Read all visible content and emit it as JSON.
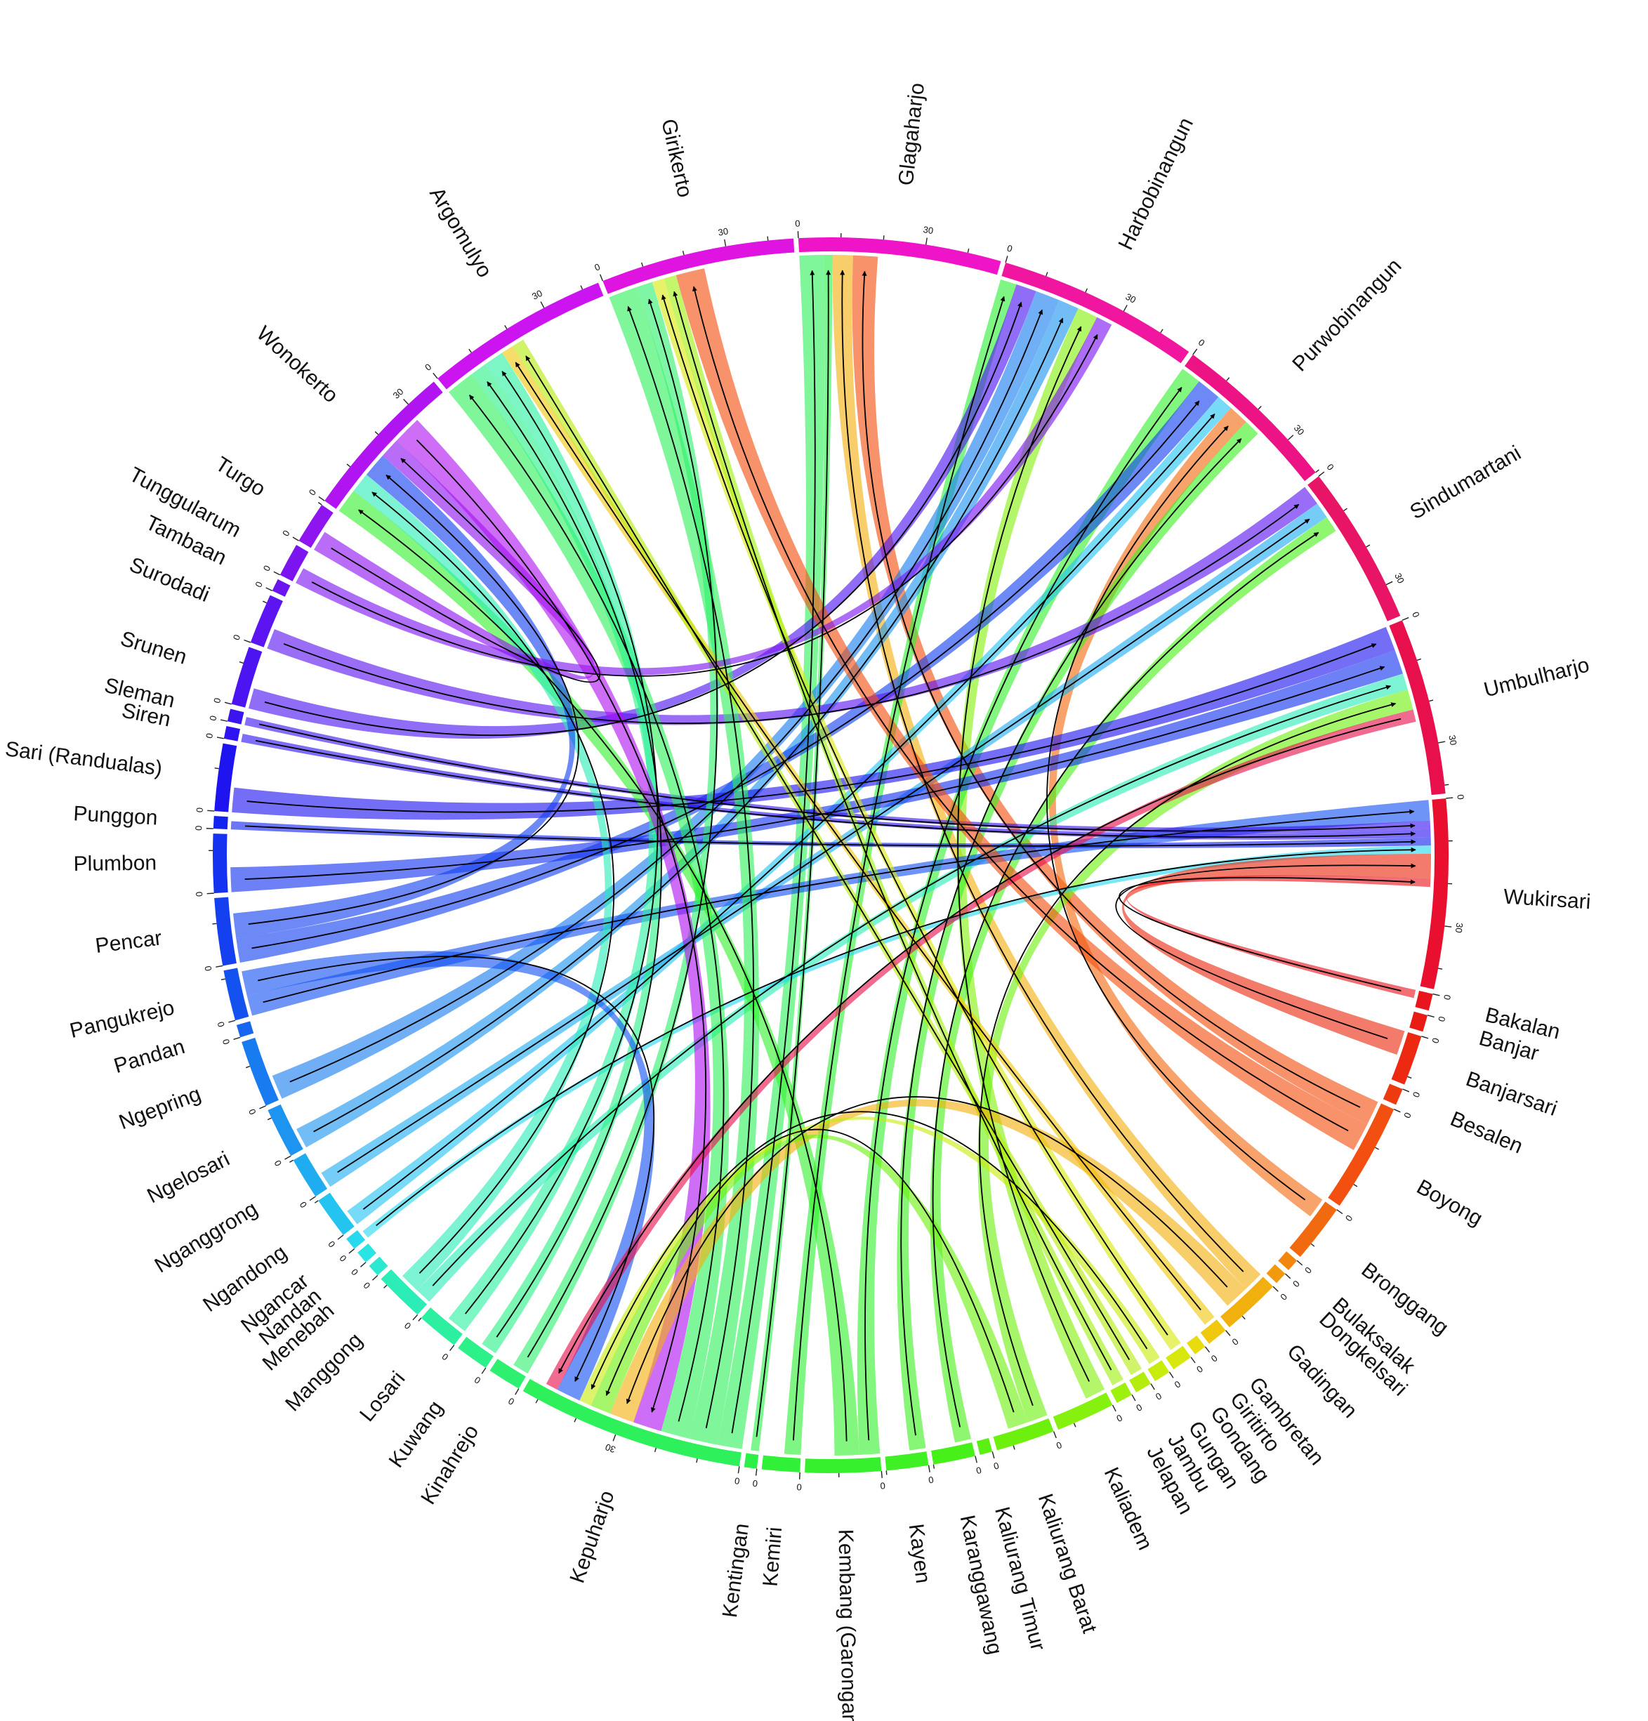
{
  "chart_data": {
    "type": "chord",
    "title": "",
    "tick_step": 10,
    "tick_label_step": 30,
    "tick_labels": [
      "0",
      "30"
    ],
    "segments": [
      {
        "name": "Glagaharjo",
        "value": 48,
        "color": "#f014c8"
      },
      {
        "name": "Harbobinangun",
        "value": 48,
        "color": "#f0169f"
      },
      {
        "name": "Purwobinangun",
        "value": 40,
        "color": "#ec1384"
      },
      {
        "name": "Sindumartani",
        "value": 38,
        "color": "#e81465"
      },
      {
        "name": "Umbulharjo",
        "value": 42,
        "color": "#e8104c"
      },
      {
        "name": "Wukirsari",
        "value": 45,
        "color": "#e8102e"
      },
      {
        "name": "Bakalan",
        "value": 4,
        "color": "#e8151c"
      },
      {
        "name": "Banjar",
        "value": 4,
        "color": "#e81c14"
      },
      {
        "name": "Banjarsari",
        "value": 12,
        "color": "#ec2a12"
      },
      {
        "name": "Besalen",
        "value": 4,
        "color": "#ee3a10"
      },
      {
        "name": "Boyong",
        "value": 26,
        "color": "#f24f10"
      },
      {
        "name": "Bronggang",
        "value": 14,
        "color": "#f26a10"
      },
      {
        "name": "Bulaksalak",
        "value": 3,
        "color": "#f2860e"
      },
      {
        "name": "Dongkelsari",
        "value": 3,
        "color": "#f29a0e"
      },
      {
        "name": "Gadingan",
        "value": 14,
        "color": "#f2b00e"
      },
      {
        "name": "Gambretan",
        "value": 5,
        "color": "#f0c80e"
      },
      {
        "name": "Giritirto",
        "value": 3,
        "color": "#e8dc0e"
      },
      {
        "name": "Gondang",
        "value": 5,
        "color": "#d8e80e"
      },
      {
        "name": "Gungan",
        "value": 4,
        "color": "#c8ec0e"
      },
      {
        "name": "Jambu",
        "value": 4,
        "color": "#b4ec0e"
      },
      {
        "name": "Jelapan",
        "value": 4,
        "color": "#9ef00e"
      },
      {
        "name": "Kaliadem",
        "value": 14,
        "color": "#86f00e"
      },
      {
        "name": "Kaliurang Barat",
        "value": 14,
        "color": "#6ef00e"
      },
      {
        "name": "Kaliurang Timur",
        "value": 3,
        "color": "#5af014"
      },
      {
        "name": "Karanggawang",
        "value": 10,
        "color": "#48f01a"
      },
      {
        "name": "Kayen",
        "value": 10,
        "color": "#3ef024"
      },
      {
        "name": "Kembang (Garongan)",
        "value": 18,
        "color": "#36f02e"
      },
      {
        "name": "Kemiri",
        "value": 9,
        "color": "#30f038"
      },
      {
        "name": "Kentingan",
        "value": 3,
        "color": "#2cf048"
      },
      {
        "name": "Kepuharjo",
        "value": 54,
        "color": "#2ef05a"
      },
      {
        "name": "Kinahrejo",
        "value": 8,
        "color": "#2ef070"
      },
      {
        "name": "Kuwang",
        "value": 8,
        "color": "#2cf088"
      },
      {
        "name": "Losari",
        "value": 10,
        "color": "#2cf0a0"
      },
      {
        "name": "Manggong",
        "value": 12,
        "color": "#2cecb8"
      },
      {
        "name": "Menebah",
        "value": 3,
        "color": "#2ce8d0"
      },
      {
        "name": "Nandan",
        "value": 3,
        "color": "#2ae4e4"
      },
      {
        "name": "Ngancar",
        "value": 3,
        "color": "#28d8ee"
      },
      {
        "name": "Ngandong",
        "value": 10,
        "color": "#24c4f0"
      },
      {
        "name": "Nganggrong",
        "value": 10,
        "color": "#20acf0"
      },
      {
        "name": "Ngelosari",
        "value": 12,
        "color": "#1c94f0"
      },
      {
        "name": "Ngepring",
        "value": 16,
        "color": "#187cf0"
      },
      {
        "name": "Pandan",
        "value": 3,
        "color": "#1666f0"
      },
      {
        "name": "Pangukrejo",
        "value": 12,
        "color": "#1452f0"
      },
      {
        "name": "Pencar",
        "value": 16,
        "color": "#1440f0"
      },
      {
        "name": "Plumbon",
        "value": 14,
        "color": "#1432f0"
      },
      {
        "name": "Punggon",
        "value": 3,
        "color": "#1424f0"
      },
      {
        "name": "Sari (Randualas)",
        "value": 16,
        "color": "#1e14f0"
      },
      {
        "name": "Siren",
        "value": 3,
        "color": "#2e14f0"
      },
      {
        "name": "Sleman",
        "value": 3,
        "color": "#3c14f0"
      },
      {
        "name": "Srunen",
        "value": 14,
        "color": "#4c14f0"
      },
      {
        "name": "Surodadi",
        "value": 12,
        "color": "#5c14f0"
      },
      {
        "name": "Tambaan",
        "value": 3,
        "color": "#6c14f0"
      },
      {
        "name": "Tunggularum",
        "value": 8,
        "color": "#7c14f0"
      },
      {
        "name": "Turgo",
        "value": 10,
        "color": "#8e14f0"
      },
      {
        "name": "Wonokerto",
        "value": 38,
        "color": "#b014f0"
      },
      {
        "name": "Argomulyo",
        "value": 44,
        "color": "#cc14f0"
      },
      {
        "name": "Girikerto",
        "value": 46,
        "color": "#e014e0"
      }
    ],
    "flows": [
      {
        "from": "Kepuharjo",
        "to": "Glagaharjo",
        "value": 6
      },
      {
        "from": "Kentingan",
        "to": "Glagaharjo",
        "value": 2
      },
      {
        "from": "Gadingan",
        "to": "Glagaharjo",
        "value": 5
      },
      {
        "from": "Boyong",
        "to": "Glagaharjo",
        "value": 6
      },
      {
        "from": "Kemiri",
        "to": "Harbobinangun",
        "value": 4
      },
      {
        "from": "Srunen",
        "to": "Harbobinangun",
        "value": 5
      },
      {
        "from": "Ngepring",
        "to": "Harbobinangun",
        "value": 6
      },
      {
        "from": "Ngelosari",
        "to": "Harbobinangun",
        "value": 5
      },
      {
        "from": "Kaliadem",
        "to": "Harbobinangun",
        "value": 5
      },
      {
        "from": "Kembang (Garongan)",
        "to": "Purwobinangun",
        "value": 5
      },
      {
        "from": "Pencar",
        "to": "Purwobinangun",
        "value": 6
      },
      {
        "from": "Ngandong",
        "to": "Purwobinangun",
        "value": 4
      },
      {
        "from": "Bronggang",
        "to": "Purwobinangun",
        "value": 5
      },
      {
        "from": "Kayen",
        "to": "Purwobinangun",
        "value": 4
      },
      {
        "from": "Surodadi",
        "to": "Sindumartani",
        "value": 5
      },
      {
        "from": "Nganggrong",
        "to": "Sindumartani",
        "value": 4
      },
      {
        "from": "Karanggawang",
        "to": "Sindumartani",
        "value": 4
      },
      {
        "from": "Sari (Randualas)",
        "to": "Umbulharjo",
        "value": 6
      },
      {
        "from": "Plumbon",
        "to": "Umbulharjo",
        "value": 6
      },
      {
        "from": "Manggong",
        "to": "Umbulharjo",
        "value": 4
      },
      {
        "from": "Kaliurang Barat",
        "to": "Umbulharjo",
        "value": 5
      },
      {
        "from": "Pangukrejo",
        "to": "Wukirsari",
        "value": 5
      },
      {
        "from": "Sleman",
        "to": "Wukirsari",
        "value": 2
      },
      {
        "from": "Siren",
        "to": "Wukirsari",
        "value": 2
      },
      {
        "from": "Punggon",
        "to": "Wukirsari",
        "value": 2
      },
      {
        "from": "Ngancar",
        "to": "Wukirsari",
        "value": 2
      },
      {
        "from": "Banjarsari",
        "to": "Wukirsari",
        "value": 6
      },
      {
        "from": "Bakalan",
        "to": "Wukirsari",
        "value": 2
      },
      {
        "from": "Kepuharjo",
        "to": "Girikerto",
        "value": 7
      },
      {
        "from": "Kinahrejo",
        "to": "Girikerto",
        "value": 4
      },
      {
        "from": "Gondang",
        "to": "Girikerto",
        "value": 3
      },
      {
        "from": "Jelapan",
        "to": "Girikerto",
        "value": 3
      },
      {
        "from": "Boyong",
        "to": "Girikerto",
        "value": 7
      },
      {
        "from": "Kepuharjo",
        "to": "Argomulyo",
        "value": 7
      },
      {
        "from": "Kuwang",
        "to": "Argomulyo",
        "value": 4
      },
      {
        "from": "Losari",
        "to": "Argomulyo",
        "value": 5
      },
      {
        "from": "Gambretan",
        "to": "Argomulyo",
        "value": 3
      },
      {
        "from": "Jambu",
        "to": "Argomulyo",
        "value": 3
      },
      {
        "from": "Kembang (Garongan)",
        "to": "Wonokerto",
        "value": 6
      },
      {
        "from": "Manggong",
        "to": "Wonokerto",
        "value": 5
      },
      {
        "from": "Pencar",
        "to": "Wonokerto",
        "value": 6
      },
      {
        "from": "Turgo",
        "to": "Wonokerto",
        "value": 5
      },
      {
        "from": "Tunggularum",
        "to": "Harbobinangun",
        "value": 4
      },
      {
        "from": "Wonokerto",
        "to": "Kepuharjo",
        "value": 7
      },
      {
        "from": "Gadingan",
        "to": "Kepuharjo",
        "value": 6
      },
      {
        "from": "Kaliurang Barat",
        "to": "Kepuharjo",
        "value": 5
      },
      {
        "from": "Gungan",
        "to": "Kepuharjo",
        "value": 3
      },
      {
        "from": "Pangukrejo",
        "to": "Kepuharjo",
        "value": 6
      },
      {
        "from": "Umbulharjo",
        "to": "Kepuharjo",
        "value": 3
      }
    ]
  }
}
